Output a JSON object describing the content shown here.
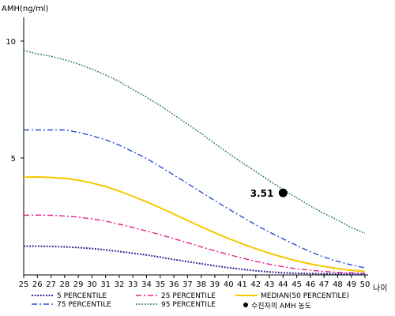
{
  "chart_data": {
    "type": "line",
    "ylabel": "AMH(ng/ml)",
    "xlabel": "나이",
    "x": [
      25,
      26,
      27,
      28,
      29,
      30,
      31,
      32,
      33,
      34,
      35,
      36,
      37,
      38,
      39,
      40,
      41,
      42,
      43,
      44,
      45,
      46,
      47,
      48,
      49,
      50
    ],
    "xlim": [
      25,
      50
    ],
    "ylim": [
      0,
      11
    ],
    "yticks": [
      5,
      10
    ],
    "grid": false,
    "legend_position": "bottom",
    "series": [
      {
        "name": "5 PERCENTILE",
        "color": "#1a1a8c",
        "style": "dotted",
        "width": 2,
        "values": [
          1.23,
          1.23,
          1.22,
          1.2,
          1.17,
          1.13,
          1.07,
          1.0,
          0.93,
          0.85,
          0.76,
          0.66,
          0.57,
          0.48,
          0.39,
          0.31,
          0.24,
          0.18,
          0.13,
          0.09,
          0.07,
          0.06,
          0.05,
          0.05,
          0.04,
          0.03
        ]
      },
      {
        "name": "25 PERCENTILE",
        "color": "#e0208a",
        "style": "dashdot",
        "width": 1.4,
        "values": [
          2.55,
          2.56,
          2.55,
          2.52,
          2.47,
          2.4,
          2.3,
          2.17,
          2.03,
          1.88,
          1.72,
          1.55,
          1.38,
          1.2,
          1.03,
          0.87,
          0.72,
          0.58,
          0.46,
          0.35,
          0.26,
          0.2,
          0.15,
          0.11,
          0.09,
          0.07
        ]
      },
      {
        "name": "MEDIAN(50 PERCENTILE)",
        "color": "#f5c800",
        "style": "solid",
        "width": 2,
        "values": [
          4.18,
          4.19,
          4.17,
          4.13,
          4.05,
          3.93,
          3.78,
          3.58,
          3.36,
          3.12,
          2.87,
          2.6,
          2.33,
          2.06,
          1.8,
          1.56,
          1.33,
          1.12,
          0.93,
          0.76,
          0.6,
          0.47,
          0.36,
          0.27,
          0.2,
          0.15
        ]
      },
      {
        "name": "75 PERCENTILE",
        "color": "#2a4fd0",
        "style": "dashdot",
        "width": 1.4,
        "values": [
          6.2,
          6.2,
          6.2,
          6.2,
          6.1,
          5.95,
          5.78,
          5.55,
          5.27,
          4.98,
          4.63,
          4.27,
          3.91,
          3.54,
          3.18,
          2.82,
          2.48,
          2.14,
          1.83,
          1.54,
          1.26,
          0.99,
          0.76,
          0.58,
          0.43,
          0.3
        ]
      },
      {
        "name": "95 PERCENTILE",
        "color": "#1c7a3a",
        "style": "dotted",
        "width": 1.4,
        "values": [
          9.6,
          9.45,
          9.35,
          9.2,
          9.02,
          8.8,
          8.55,
          8.27,
          7.93,
          7.6,
          7.24,
          6.85,
          6.45,
          6.05,
          5.62,
          5.2,
          4.8,
          4.42,
          4.03,
          3.65,
          3.3,
          2.95,
          2.63,
          2.34,
          2.03,
          1.78
        ]
      }
    ],
    "highlight": {
      "name": "수진자의 AMH 농도",
      "x": 44,
      "y": 3.51,
      "label": "3.51",
      "color": "#000000"
    }
  }
}
